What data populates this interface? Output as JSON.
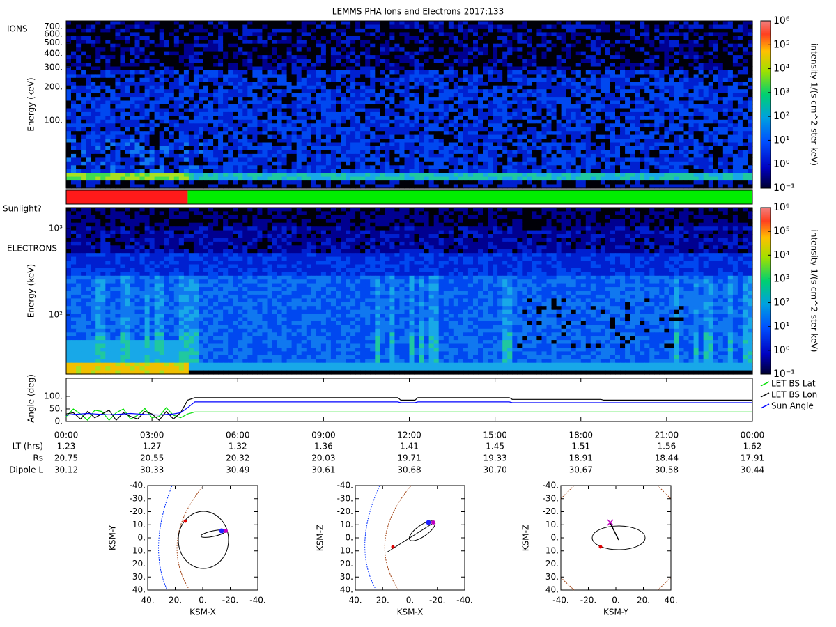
{
  "title": "LEMMS PHA Ions and Electrons  2017:133",
  "chart_data": [
    {
      "type": "heatmap",
      "label": "IONS",
      "ylabel": "Energy (keV)",
      "log": true,
      "ylim": [
        24.5,
        790
      ],
      "yticks": [
        {
          "value": 100,
          "label": "100."
        },
        {
          "value": 200,
          "label": "200."
        },
        {
          "value": 300,
          "label": "300."
        },
        {
          "value": 400,
          "label": "400."
        },
        {
          "value": 500,
          "label": "500."
        },
        {
          "value": 600,
          "label": "600."
        },
        {
          "value": 700,
          "label": "700."
        }
      ],
      "colorbar": {
        "label": "intensity 1/(s cm^2 ster keV)",
        "lim": [
          0.1,
          1000000
        ],
        "ticks": [
          {
            "value": 0.1,
            "label": "10⁻¹"
          },
          {
            "value": 1,
            "label": "10⁰"
          },
          {
            "value": 10,
            "label": "10¹"
          },
          {
            "value": 100,
            "label": "10²"
          },
          {
            "value": 1000,
            "label": "10³"
          },
          {
            "value": 10000,
            "label": "10⁴"
          },
          {
            "value": 100000,
            "label": "10⁵"
          },
          {
            "value": 1000000,
            "label": "10⁶"
          }
        ]
      }
    },
    {
      "type": "timeline",
      "label": "Sunlight?",
      "segments": [
        {
          "start": 0,
          "end": 4.25,
          "color": "#ff1a1a"
        },
        {
          "start": 4.25,
          "end": 24,
          "color": "#00ee00"
        }
      ]
    },
    {
      "type": "heatmap",
      "label": "ELECTRONS",
      "ylabel": "Energy (keV)",
      "log": true,
      "ylim": [
        20.6,
        1750
      ],
      "yticks": [
        {
          "value": 100,
          "label": "10²"
        },
        {
          "value": 1000,
          "label": "10³"
        }
      ],
      "colorbar": {
        "label": "intensity 1/(s cm^2 ster keV)",
        "lim": [
          0.1,
          1000000
        ],
        "ticks": [
          {
            "value": 0.1,
            "label": "10⁻¹"
          },
          {
            "value": 1,
            "label": "10⁰"
          },
          {
            "value": 10,
            "label": "10¹"
          },
          {
            "value": 100,
            "label": "10²"
          },
          {
            "value": 1000,
            "label": "10³"
          },
          {
            "value": 10000,
            "label": "10⁴"
          },
          {
            "value": 100000,
            "label": "10⁵"
          },
          {
            "value": 1000000,
            "label": "10⁶"
          }
        ]
      }
    },
    {
      "type": "line",
      "ylabel": "Angle (deg)",
      "ylim": [
        0,
        172
      ],
      "yticks": [
        {
          "value": 0,
          "label": "0."
        },
        {
          "value": 50,
          "label": "50."
        },
        {
          "value": 100,
          "label": "100."
        }
      ],
      "xlim": [
        0,
        24
      ],
      "xticks": [
        {
          "value": 0,
          "label": "00:00"
        },
        {
          "value": 3,
          "label": "03:00"
        },
        {
          "value": 6,
          "label": "06:00"
        },
        {
          "value": 9,
          "label": "09:00"
        },
        {
          "value": 12,
          "label": "12:00"
        },
        {
          "value": 15,
          "label": "15:00"
        },
        {
          "value": 18,
          "label": "18:00"
        },
        {
          "value": 21,
          "label": "21:00"
        },
        {
          "value": 24,
          "label": "00:00"
        }
      ],
      "x": [
        0,
        0.25,
        0.5,
        0.75,
        1,
        1.25,
        1.5,
        1.75,
        2,
        2.25,
        2.5,
        2.75,
        3,
        3.25,
        3.5,
        3.75,
        4,
        4.25,
        4.5,
        11.6,
        11.7,
        12.2,
        12.3,
        15.5,
        15.6,
        18.7,
        18.8,
        24
      ],
      "legend_loc": "right",
      "series": [
        {
          "name": "LET BS Lat",
          "color": "#00e000",
          "values": [
            20,
            50,
            30,
            5,
            45,
            40,
            5,
            35,
            50,
            10,
            25,
            52,
            15,
            20,
            55,
            25,
            15,
            30,
            38,
            38,
            38,
            38,
            38,
            38,
            38,
            38,
            38,
            38
          ]
        },
        {
          "name": "LET BS Lon",
          "color": "#000000",
          "values": [
            30,
            35,
            10,
            40,
            15,
            30,
            45,
            5,
            35,
            20,
            10,
            40,
            30,
            5,
            40,
            10,
            35,
            85,
            95,
            95,
            85,
            85,
            95,
            95,
            88,
            88,
            85,
            85
          ]
        },
        {
          "name": "Sun Angle",
          "color": "#0000ff",
          "values": [
            25,
            28,
            30,
            32,
            30,
            28,
            27,
            28,
            30,
            32,
            30,
            28,
            27,
            26,
            28,
            30,
            35,
            55,
            78,
            78,
            75,
            75,
            78,
            78,
            75,
            75,
            75,
            75
          ]
        }
      ]
    },
    {
      "type": "orbit",
      "xlabel": "KSM-X",
      "ylabel": "KSM-Y",
      "xlim": [
        40,
        -40
      ],
      "ylim": [
        40,
        -40
      ],
      "xticks": [
        {
          "value": 40,
          "label": "40."
        },
        {
          "value": 20,
          "label": "20."
        },
        {
          "value": 0,
          "label": "0."
        },
        {
          "value": -20,
          "label": "-20."
        },
        {
          "value": -40,
          "label": "-40."
        }
      ],
      "yticks": [
        {
          "value": -40,
          "label": "-40."
        },
        {
          "value": -30,
          "label": "-30."
        },
        {
          "value": -20,
          "label": "-20."
        },
        {
          "value": -10,
          "label": "-10."
        },
        {
          "value": 0,
          "label": "0."
        },
        {
          "value": 10,
          "label": "10."
        },
        {
          "value": 20,
          "label": "20."
        },
        {
          "value": 30,
          "label": "30."
        },
        {
          "value": 40,
          "label": "40."
        }
      ]
    },
    {
      "type": "orbit",
      "xlabel": "KSM-X",
      "ylabel": "KSM-Z",
      "xlim": [
        40,
        -40
      ],
      "ylim": [
        40,
        -40
      ],
      "xticks": [
        {
          "value": 40,
          "label": "40."
        },
        {
          "value": 20,
          "label": "20."
        },
        {
          "value": 0,
          "label": "0."
        },
        {
          "value": -20,
          "label": "-20."
        },
        {
          "value": -40,
          "label": "-40."
        }
      ],
      "yticks": [
        {
          "value": -40,
          "label": "-40."
        },
        {
          "value": -30,
          "label": "-30."
        },
        {
          "value": -20,
          "label": "-20."
        },
        {
          "value": -10,
          "label": "-10."
        },
        {
          "value": 0,
          "label": "0."
        },
        {
          "value": 10,
          "label": "10."
        },
        {
          "value": 20,
          "label": "20."
        },
        {
          "value": 30,
          "label": "30."
        },
        {
          "value": 40,
          "label": "40."
        }
      ]
    },
    {
      "type": "orbit",
      "xlabel": "KSM-Y",
      "ylabel": "KSM-Z",
      "xlim": [
        -40,
        40
      ],
      "ylim": [
        40,
        -40
      ],
      "xticks": [
        {
          "value": -40,
          "label": "-40."
        },
        {
          "value": -20,
          "label": "-20."
        },
        {
          "value": 0,
          "label": "0."
        },
        {
          "value": 20,
          "label": "20."
        },
        {
          "value": 40,
          "label": "40."
        }
      ],
      "yticks": [
        {
          "value": -40,
          "label": "-40."
        },
        {
          "value": -30,
          "label": "-30."
        },
        {
          "value": -20,
          "label": "-20."
        },
        {
          "value": -10,
          "label": "-10."
        },
        {
          "value": 0,
          "label": "0."
        },
        {
          "value": 10,
          "label": "10."
        },
        {
          "value": 20,
          "label": "20."
        },
        {
          "value": 30,
          "label": "30."
        },
        {
          "value": 40,
          "label": "40."
        }
      ]
    }
  ],
  "table": {
    "rows": [
      {
        "label": "LT (hrs)",
        "values": [
          "1.23",
          "1.27",
          "1.32",
          "1.36",
          "1.41",
          "1.45",
          "1.51",
          "1.56",
          "1.62"
        ]
      },
      {
        "label": "Rs",
        "values": [
          "20.75",
          "20.55",
          "20.32",
          "20.03",
          "19.71",
          "19.33",
          "18.91",
          "18.44",
          "17.91"
        ]
      },
      {
        "label": "Dipole L",
        "values": [
          "30.12",
          "30.33",
          "30.49",
          "30.61",
          "30.68",
          "30.70",
          "30.67",
          "30.58",
          "30.44"
        ]
      }
    ]
  }
}
